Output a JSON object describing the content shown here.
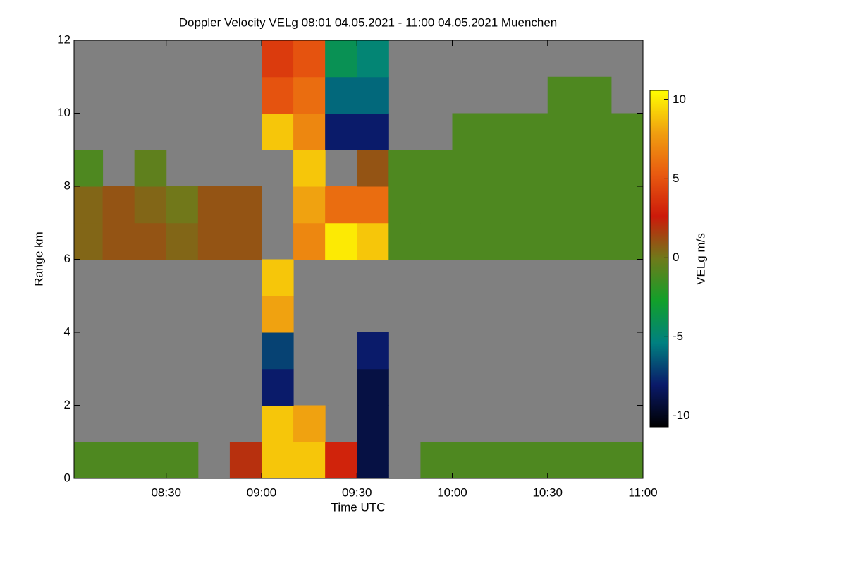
{
  "chart_data": {
    "type": "heatmap",
    "title": "Doppler Velocity VELg   08:01 04.05.2021 - 11:00 04.05.2021 Muenchen",
    "x_label": "Time UTC",
    "y_label": "Range km",
    "colorbar_label": "VELg m/s",
    "xlim": [
      "08:01",
      "11:00"
    ],
    "xticks": [
      "08:30",
      "09:00",
      "09:30",
      "10:00",
      "10:30",
      "11:00"
    ],
    "ylim": [
      0,
      12
    ],
    "yticks": [
      0,
      2,
      4,
      6,
      8,
      10,
      12
    ],
    "clim": [
      -10.7,
      10.6
    ],
    "cticks": [
      -10,
      -5,
      0,
      5,
      10
    ],
    "colormap": [
      "#000000",
      "#0a1a6a",
      "#008080",
      "#12a02a",
      "#6f7a1a",
      "#cc1a0a",
      "#e85a10",
      "#f0a010",
      "#ffff00"
    ],
    "null_color": "#808080",
    "x": [
      "08:05",
      "08:15",
      "08:25",
      "08:35",
      "08:45",
      "08:55",
      "09:05",
      "09:15",
      "09:25",
      "09:35",
      "09:45",
      "09:55",
      "10:05",
      "10:15",
      "10:25",
      "10:35",
      "10:45",
      "10:55"
    ],
    "y": [
      0.5,
      1.5,
      2.5,
      3.5,
      4.5,
      5.5,
      6.5,
      7.5,
      8.5,
      9.5,
      10.5,
      11.5
    ],
    "z": [
      [
        -1,
        -1,
        -1,
        -1,
        null,
        2,
        9,
        9,
        3,
        -9,
        null,
        -1,
        -1,
        -1,
        -1,
        -1,
        -1,
        -1
      ],
      [
        null,
        null,
        null,
        null,
        null,
        null,
        9,
        8,
        null,
        -9,
        null,
        null,
        null,
        null,
        null,
        null,
        null,
        null
      ],
      [
        null,
        null,
        null,
        null,
        null,
        null,
        -8,
        null,
        null,
        -9,
        null,
        null,
        null,
        null,
        null,
        null,
        null,
        null
      ],
      [
        null,
        null,
        null,
        null,
        null,
        null,
        -7,
        null,
        null,
        -8,
        null,
        null,
        null,
        null,
        null,
        null,
        null,
        null
      ],
      [
        null,
        null,
        null,
        null,
        null,
        null,
        8,
        null,
        null,
        null,
        null,
        null,
        null,
        null,
        null,
        null,
        null,
        null
      ],
      [
        null,
        null,
        null,
        null,
        null,
        null,
        9,
        null,
        null,
        null,
        null,
        null,
        null,
        null,
        null,
        null,
        null,
        null
      ],
      [
        0.5,
        1,
        1,
        0.5,
        1,
        1,
        null,
        7,
        10,
        9,
        -1,
        -1,
        -1,
        -1,
        -1,
        -1,
        -1,
        -1
      ],
      [
        0.5,
        1,
        0.5,
        0,
        1,
        1,
        null,
        8,
        6,
        6,
        -1,
        -1,
        -1,
        -1,
        -1,
        -1,
        -1,
        -1
      ],
      [
        -1,
        null,
        -0.5,
        null,
        null,
        null,
        null,
        9,
        null,
        1,
        -1,
        -1,
        -1,
        -1,
        -1,
        -1,
        -1,
        -1
      ],
      [
        null,
        null,
        null,
        null,
        null,
        null,
        9,
        7,
        -8,
        -8,
        null,
        null,
        -1,
        -1,
        -1,
        -1,
        -1,
        -1
      ],
      [
        null,
        null,
        null,
        null,
        null,
        null,
        5,
        6,
        -6,
        -6,
        null,
        null,
        null,
        null,
        null,
        -1,
        -1,
        null
      ],
      [
        null,
        null,
        null,
        null,
        null,
        null,
        4,
        5,
        -4,
        -5,
        null,
        null,
        null,
        null,
        null,
        null,
        null,
        null
      ]
    ]
  }
}
